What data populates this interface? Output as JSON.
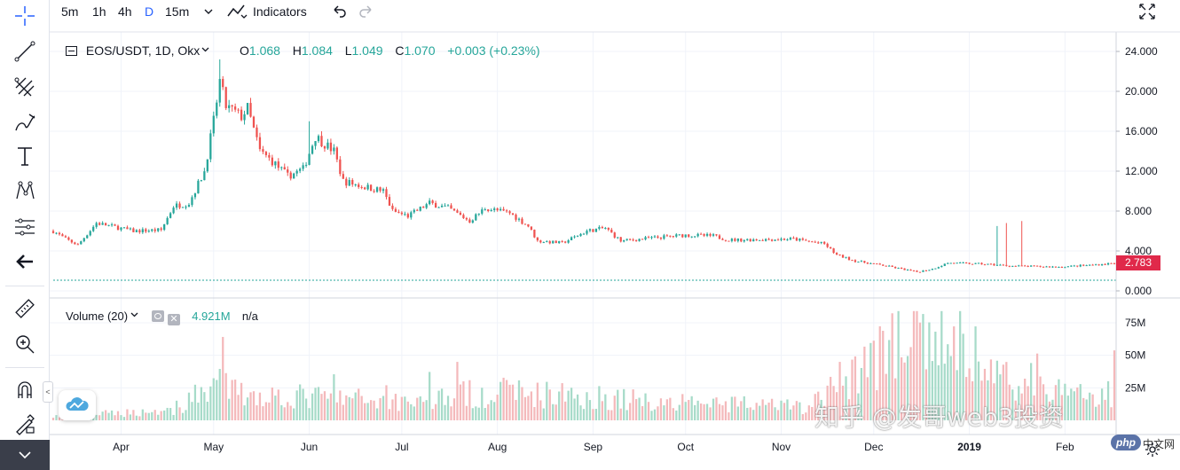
{
  "toolbar": {
    "intervals": [
      "5m",
      "1h",
      "4h",
      "D",
      "15m"
    ],
    "active_interval": "D",
    "indicators_label": "Indicators"
  },
  "legend": {
    "symbol": "EOS/USDT, 1D, Okx",
    "o_label": "O",
    "o_value": "1.068",
    "h_label": "H",
    "h_value": "1.084",
    "l_label": "L",
    "l_value": "1.049",
    "c_label": "C",
    "c_value": "1.070",
    "change": "+0.003 (+0.23%)"
  },
  "volume_legend": {
    "title": "Volume (20)",
    "value": "4.921M",
    "ma": "n/a"
  },
  "price_axis": [
    "24.000",
    "20.000",
    "16.000",
    "12.000",
    "8.000",
    "4.000",
    "0.000"
  ],
  "volume_axis": [
    "75M",
    "50M",
    "25M"
  ],
  "time_axis": [
    "Apr",
    "May",
    "Jun",
    "Jul",
    "Aug",
    "Sep",
    "Oct",
    "Nov",
    "Dec",
    "2019",
    "Feb"
  ],
  "last_price": "2.783",
  "watermark": "知乎 @发哥web3投资",
  "php_logo": "php",
  "php_text": "中文网",
  "colors": {
    "up": "#26a69a",
    "down": "#ef5350",
    "up_volume": "#a7dbc9",
    "down_volume": "#f4b9bb",
    "accent": "#2962ff"
  },
  "chart_data": {
    "type": "candlestick",
    "symbol": "EOS/USDT",
    "interval": "1D",
    "y_range": [
      0,
      24
    ],
    "volume_range_millions": [
      0,
      85
    ],
    "anchor_path": [
      {
        "t": "Mar 10",
        "price": 6.0
      },
      {
        "t": "Mar 14",
        "price": 5.2
      },
      {
        "t": "Mar 18",
        "price": 4.6
      },
      {
        "t": "Mar 24",
        "price": 6.8
      },
      {
        "t": "Apr 5",
        "price": 6.0
      },
      {
        "t": "Apr 14",
        "price": 6.1
      },
      {
        "t": "Apr 18",
        "price": 8.5
      },
      {
        "t": "Apr 23",
        "price": 8.8
      },
      {
        "t": "Apr 28",
        "price": 12.0
      },
      {
        "t": "May 1",
        "price": 17.0
      },
      {
        "t": "May 3",
        "price": 21.0
      },
      {
        "t": "May 5",
        "price": 18.5
      },
      {
        "t": "May 10",
        "price": 17.5
      },
      {
        "t": "May 12",
        "price": 18.3
      },
      {
        "t": "May 16",
        "price": 14.0
      },
      {
        "t": "May 20",
        "price": 13.0
      },
      {
        "t": "May 25",
        "price": 11.5
      },
      {
        "t": "May 30",
        "price": 12.2
      },
      {
        "t": "Jun 3",
        "price": 15.5
      },
      {
        "t": "Jun 9",
        "price": 14.0
      },
      {
        "t": "Jun 12",
        "price": 11.0
      },
      {
        "t": "Jun 18",
        "price": 10.5
      },
      {
        "t": "Jun 25",
        "price": 10.0
      },
      {
        "t": "Jun 28",
        "price": 8.0
      },
      {
        "t": "Jul 3",
        "price": 7.5
      },
      {
        "t": "Jul 10",
        "price": 8.8
      },
      {
        "t": "Jul 16",
        "price": 8.3
      },
      {
        "t": "Jul 23",
        "price": 7.0
      },
      {
        "t": "Jul 28",
        "price": 8.3
      },
      {
        "t": "Aug 5",
        "price": 7.8
      },
      {
        "t": "Aug 11",
        "price": 6.5
      },
      {
        "t": "Aug 14",
        "price": 5.0
      },
      {
        "t": "Aug 22",
        "price": 4.8
      },
      {
        "t": "Aug 30",
        "price": 6.0
      },
      {
        "t": "Sep 5",
        "price": 6.3
      },
      {
        "t": "Sep 10",
        "price": 5.0
      },
      {
        "t": "Sep 20",
        "price": 5.3
      },
      {
        "t": "Oct 1",
        "price": 5.6
      },
      {
        "t": "Oct 10",
        "price": 5.5
      },
      {
        "t": "Oct 15",
        "price": 5.1
      },
      {
        "t": "Nov 5",
        "price": 5.2
      },
      {
        "t": "Nov 15",
        "price": 4.7
      },
      {
        "t": "Nov 19",
        "price": 3.6
      },
      {
        "t": "Nov 25",
        "price": 3.0
      },
      {
        "t": "Dec 5",
        "price": 2.5
      },
      {
        "t": "Dec 15",
        "price": 1.9
      },
      {
        "t": "Dec 20",
        "price": 2.2
      },
      {
        "t": "Dec 25",
        "price": 2.8
      },
      {
        "t": "Jan 5",
        "price": 2.7
      },
      {
        "t": "Jan 15",
        "price": 2.5
      },
      {
        "t": "Jan 30",
        "price": 2.4
      },
      {
        "t": "Feb 10",
        "price": 2.6
      },
      {
        "t": "Feb 17",
        "price": 2.78
      }
    ],
    "wicks": [
      {
        "t": "May 3",
        "high": 23.2
      },
      {
        "t": "Jun 1",
        "high": 17.0
      },
      {
        "t": "Jan 10",
        "high": 6.5
      },
      {
        "t": "Jan 13",
        "high": 6.8
      },
      {
        "t": "Jan 18",
        "high": 7.0
      }
    ],
    "dotted_line_price": 1.07,
    "volume_anchor_path_millions": [
      {
        "t": "Mar 10",
        "vol": 3
      },
      {
        "t": "Apr 20",
        "vol": 8
      },
      {
        "t": "May 1",
        "vol": 30
      },
      {
        "t": "May 10",
        "vol": 20
      },
      {
        "t": "Jun 1",
        "vol": 18
      },
      {
        "t": "Jul 1",
        "vol": 15
      },
      {
        "t": "Aug 1",
        "vol": 22
      },
      {
        "t": "Sep 1",
        "vol": 18
      },
      {
        "t": "Oct 1",
        "vol": 13
      },
      {
        "t": "Nov 10",
        "vol": 10
      },
      {
        "t": "Nov 25",
        "vol": 40
      },
      {
        "t": "Dec 10",
        "vol": 60
      },
      {
        "t": "Dec 25",
        "vol": 65
      },
      {
        "t": "Jan 10",
        "vol": 35
      },
      {
        "t": "Feb 1",
        "vol": 20
      },
      {
        "t": "Feb 17",
        "vol": 22
      }
    ]
  }
}
